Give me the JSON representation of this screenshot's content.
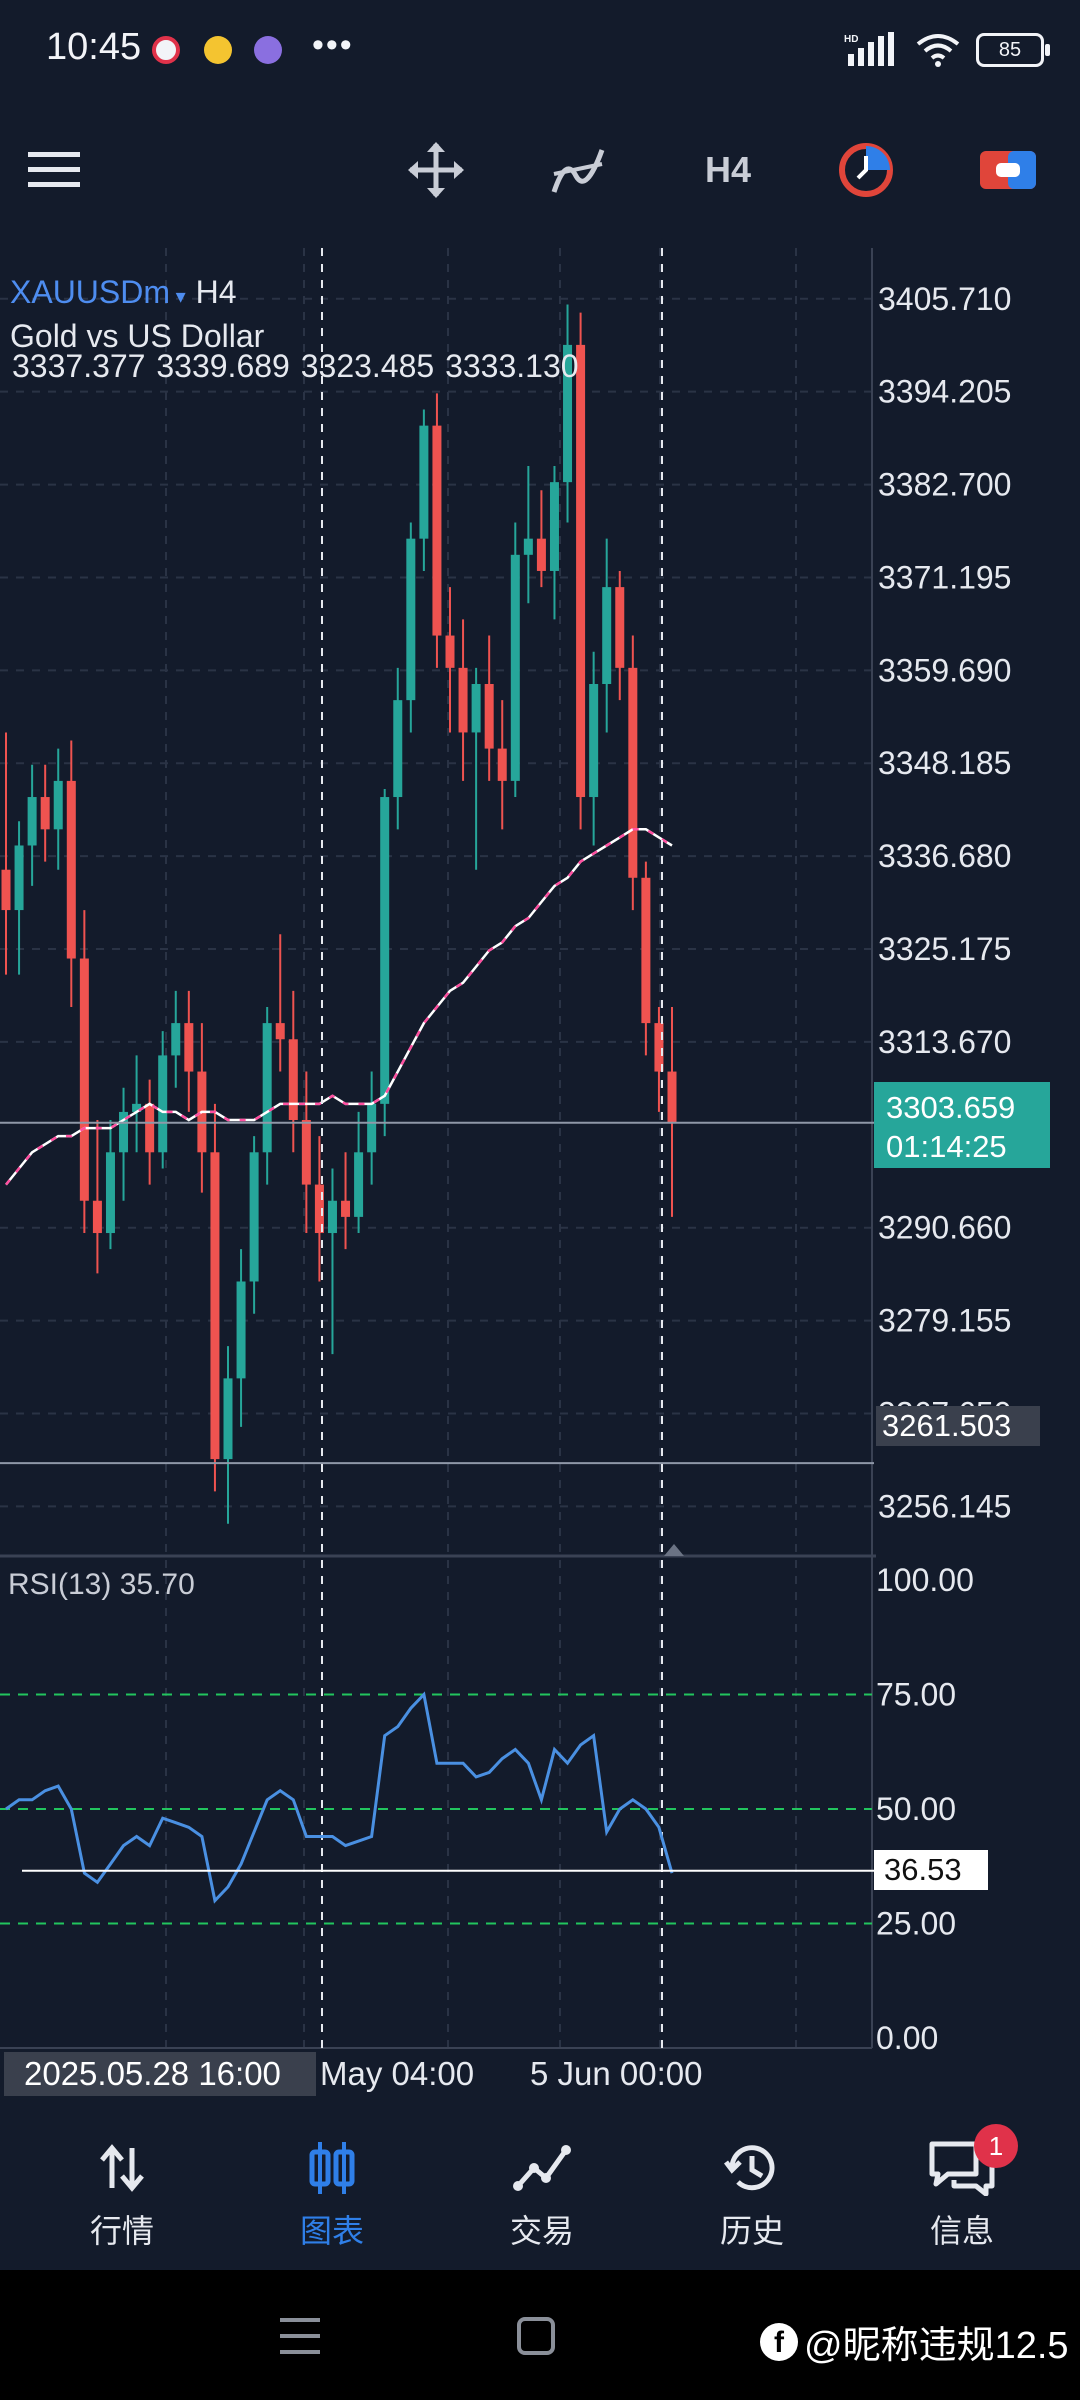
{
  "status_bar": {
    "time": "10:45",
    "battery": "85"
  },
  "toolbar": {
    "timeframe": "H4"
  },
  "symbol": {
    "name": "XAUUSDm",
    "timeframe": "H4",
    "description": "Gold vs US Dollar"
  },
  "ohlc": {
    "open": "3337.377",
    "high": "3339.689",
    "low": "3323.485",
    "close": "3333.130"
  },
  "price_axis": [
    "3405.710",
    "3394.205",
    "3382.700",
    "3371.195",
    "3359.690",
    "3348.185",
    "3336.680",
    "3325.175",
    "3313.670",
    "3290.660",
    "3279.155",
    "3267.650",
    "3256.145"
  ],
  "current_price": {
    "price": "3303.659",
    "countdown": "01:14:25"
  },
  "hline_price": "3261.503",
  "rsi": {
    "label": "RSI(13) 35.70",
    "axis": [
      "100.00",
      "75.00",
      "50.00",
      "25.00",
      "0.00"
    ],
    "current": "36.53"
  },
  "time_axis": {
    "cursor": "2025.05.28 16:00",
    "labels": [
      "May 04:00",
      "5 Jun 00:00"
    ]
  },
  "nav": [
    {
      "label": "行情"
    },
    {
      "label": "图表"
    },
    {
      "label": "交易"
    },
    {
      "label": "历史"
    },
    {
      "label": "信息",
      "badge": "1"
    }
  ],
  "watermark": "@昵称违规12.5",
  "colors": {
    "bull": "#26a69a",
    "bear": "#ef5350",
    "accent": "#2f7fe8",
    "rsi": "#4a90e2",
    "background": "#131b2b"
  },
  "chart_data": {
    "type": "candlestick",
    "price_range": [
      3250,
      3412
    ],
    "rsi_range": [
      0,
      100
    ],
    "rsi_levels": [
      75,
      50,
      25
    ],
    "candles": [
      [
        3335,
        3352,
        3322,
        3330
      ],
      [
        3330,
        3341,
        3322,
        3338
      ],
      [
        3338,
        3348,
        3333,
        3344
      ],
      [
        3344,
        3348,
        3336,
        3340
      ],
      [
        3340,
        3350,
        3335,
        3346
      ],
      [
        3346,
        3351,
        3318,
        3324
      ],
      [
        3324,
        3330,
        3290,
        3294
      ],
      [
        3294,
        3304,
        3285,
        3290
      ],
      [
        3290,
        3304,
        3288,
        3300
      ],
      [
        3300,
        3308,
        3294,
        3305
      ],
      [
        3305,
        3312,
        3300,
        3306
      ],
      [
        3306,
        3309,
        3296,
        3300
      ],
      [
        3300,
        3315,
        3298,
        3312
      ],
      [
        3312,
        3320,
        3308,
        3316
      ],
      [
        3316,
        3320,
        3305,
        3310
      ],
      [
        3310,
        3316,
        3295,
        3300
      ],
      [
        3300,
        3306,
        3258,
        3262
      ],
      [
        3262,
        3276,
        3254,
        3272
      ],
      [
        3272,
        3288,
        3266,
        3284
      ],
      [
        3284,
        3302,
        3280,
        3300
      ],
      [
        3300,
        3318,
        3296,
        3316
      ],
      [
        3316,
        3327,
        3310,
        3314
      ],
      [
        3314,
        3320,
        3300,
        3304
      ],
      [
        3304,
        3310,
        3290,
        3296
      ],
      [
        3296,
        3302,
        3284,
        3290
      ],
      [
        3290,
        3298,
        3275,
        3294
      ],
      [
        3294,
        3300,
        3288,
        3292
      ],
      [
        3292,
        3305,
        3290,
        3300
      ],
      [
        3300,
        3310,
        3296,
        3306
      ],
      [
        3306,
        3345,
        3302,
        3344
      ],
      [
        3344,
        3360,
        3340,
        3356
      ],
      [
        3356,
        3378,
        3352,
        3376
      ],
      [
        3376,
        3392,
        3372,
        3390
      ],
      [
        3390,
        3394,
        3360,
        3364
      ],
      [
        3364,
        3370,
        3352,
        3360
      ],
      [
        3360,
        3366,
        3346,
        3352
      ],
      [
        3352,
        3360,
        3335,
        3358
      ],
      [
        3358,
        3364,
        3346,
        3350
      ],
      [
        3350,
        3356,
        3340,
        3346
      ],
      [
        3346,
        3378,
        3344,
        3374
      ],
      [
        3374,
        3385,
        3368,
        3376
      ],
      [
        3376,
        3382,
        3370,
        3372
      ],
      [
        3372,
        3385,
        3366,
        3383
      ],
      [
        3383,
        3405,
        3378,
        3400
      ],
      [
        3400,
        3404,
        3340,
        3344
      ],
      [
        3344,
        3362,
        3338,
        3358
      ],
      [
        3358,
        3376,
        3352,
        3370
      ],
      [
        3370,
        3372,
        3356,
        3360
      ],
      [
        3360,
        3364,
        3330,
        3334
      ],
      [
        3334,
        3336,
        3312,
        3316
      ],
      [
        3316,
        3318,
        3305,
        3310
      ],
      [
        3310,
        3318,
        3292,
        3303.659
      ]
    ],
    "ma_line": [
      3296,
      3298,
      3300,
      3301,
      3302,
      3302,
      3303,
      3303,
      3303,
      3304,
      3305,
      3306,
      3305,
      3305,
      3304,
      3305,
      3305,
      3304,
      3304,
      3304,
      3305,
      3306,
      3306,
      3306,
      3306,
      3307,
      3306,
      3306,
      3306,
      3307,
      3310,
      3313,
      3316,
      3318,
      3320,
      3321,
      3323,
      3325,
      3326,
      3328,
      3329,
      3331,
      3333,
      3334,
      3336,
      3337,
      3338,
      3339,
      3340,
      3340,
      3339,
      3338
    ],
    "rsi_values": [
      50,
      52,
      52,
      54,
      55,
      50,
      36,
      34,
      38,
      42,
      44,
      42,
      48,
      47,
      46,
      44,
      30,
      33,
      38,
      45,
      52,
      54,
      52,
      44,
      44,
      44,
      42,
      43,
      44,
      66,
      68,
      72,
      75,
      60,
      60,
      60,
      57,
      58,
      61,
      63,
      60,
      52,
      63,
      60,
      64,
      66,
      45,
      50,
      52,
      50,
      46,
      36
    ]
  }
}
